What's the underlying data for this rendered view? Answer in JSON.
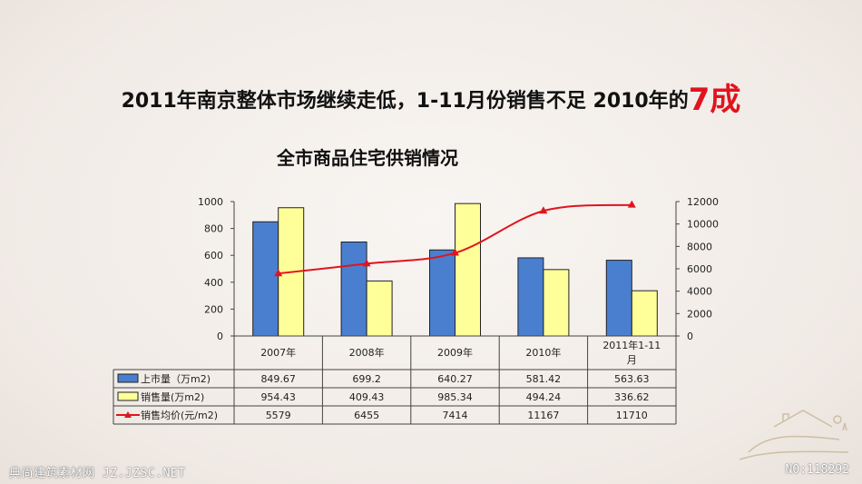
{
  "headline": {
    "main": "2011年南京整体市场继续走低，1-11月份销售不足 2010年的",
    "emphasis": "7成"
  },
  "chart_data": {
    "type": "bar",
    "title": "全市商品住宅供销情况",
    "categories": [
      "2007年",
      "2008年",
      "2009年",
      "2010年",
      "2011年1-11月"
    ],
    "series": [
      {
        "name": "上市量（万m2)",
        "kind": "bar",
        "axis": "left",
        "color": "#4a7fd0",
        "values": [
          849.67,
          699.2,
          640.27,
          581.42,
          563.63
        ]
      },
      {
        "name": "销售量(万m2)",
        "kind": "bar",
        "axis": "left",
        "color": "#ffff99",
        "values": [
          954.43,
          409.43,
          985.34,
          494.24,
          336.62
        ]
      },
      {
        "name": "销售均价(元/m2)",
        "kind": "line",
        "axis": "right",
        "color": "#e0141e",
        "values": [
          5579,
          6455,
          7414,
          11167,
          11710
        ]
      }
    ],
    "left_axis": {
      "ylim": [
        0,
        1000
      ],
      "ticks": [
        "0",
        "200",
        "400",
        "600",
        "800",
        "1000"
      ]
    },
    "right_axis": {
      "ylim": [
        0,
        12000
      ],
      "ticks": [
        "0",
        "2000",
        "4000",
        "6000",
        "8000",
        "10000",
        "12000"
      ]
    },
    "table": {
      "rows": [
        [
          "849.67",
          "699.2",
          "640.27",
          "581.42",
          "563.63"
        ],
        [
          "954.43",
          "409.43",
          "985.34",
          "494.24",
          "336.62"
        ],
        [
          "5579",
          "6455",
          "7414",
          "11167",
          "11710"
        ]
      ]
    }
  },
  "watermark": {
    "left": "典尚建筑素材网 JZ.JZSC.NET",
    "right": "NO:118292"
  }
}
